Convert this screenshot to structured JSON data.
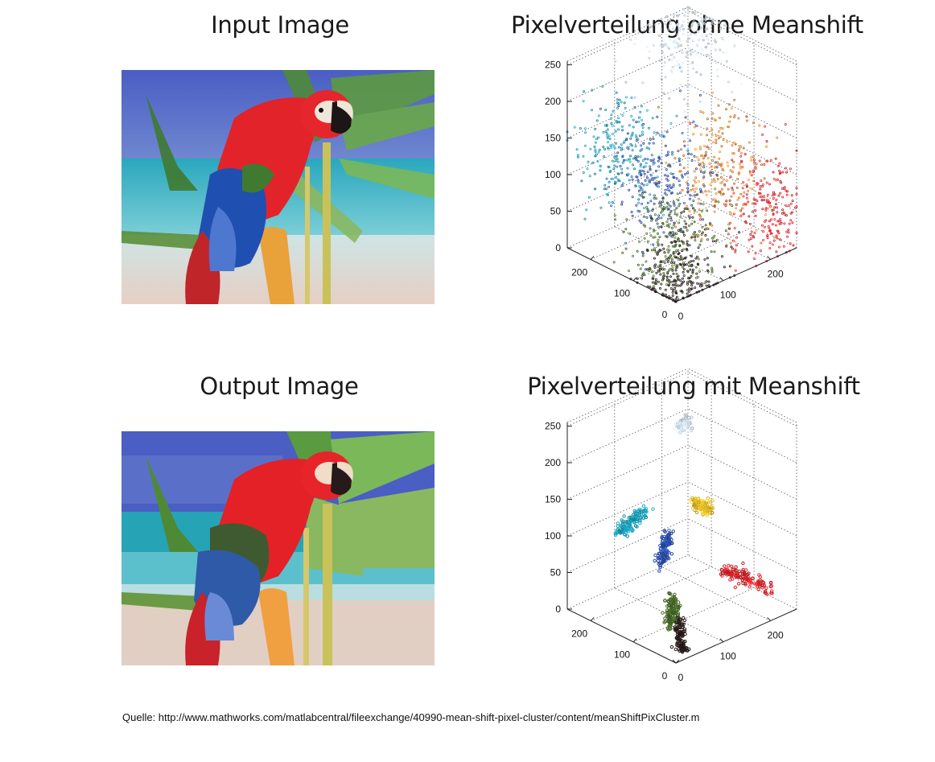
{
  "panels": {
    "input_title": "Input Image",
    "output_title": "Output Image",
    "plot_top_title": "Pixelverteilung ohne Meanshift",
    "plot_bottom_title": "Pixelverteilung mit Meanshift"
  },
  "footer": {
    "source": "Quelle: http://www.mathworks.com/matlabcentral/fileexchange/40990-mean-shift-pixel-cluster/content/meanShiftPixCluster.m"
  },
  "chart_data": [
    {
      "type": "scatter",
      "dimensions": 3,
      "title": "Pixelverteilung ohne Meanshift",
      "axes": {
        "x": {
          "range": [
            0,
            255
          ],
          "ticks": [
            0,
            100,
            200
          ]
        },
        "y": {
          "range": [
            0,
            255
          ],
          "ticks": [
            0,
            100,
            200
          ]
        },
        "z": {
          "range": [
            0,
            255
          ],
          "ticks": [
            0,
            50,
            100,
            150,
            200,
            250
          ]
        }
      },
      "grid": true,
      "clusters": [
        {
          "color": "#e0242a",
          "center": [
            225,
            30,
            60
          ]
        },
        {
          "color": "#1aa3c0",
          "center": [
            30,
            170,
            150
          ]
        },
        {
          "color": "#2a4fb0",
          "center": [
            40,
            80,
            130
          ]
        },
        {
          "color": "#4a6f2a",
          "center": [
            60,
            80,
            40
          ]
        },
        {
          "color": "#e88a2a",
          "center": [
            200,
            120,
            90
          ]
        },
        {
          "color": "#d8e4f0",
          "center": [
            210,
            210,
            235
          ]
        },
        {
          "color": "#2a1a1a",
          "center": [
            40,
            30,
            20
          ]
        }
      ]
    },
    {
      "type": "scatter",
      "dimensions": 3,
      "title": "Pixelverteilung mit Meanshift",
      "axes": {
        "x": {
          "range": [
            0,
            255
          ],
          "ticks": [
            0,
            100,
            200
          ]
        },
        "y": {
          "range": [
            0,
            255
          ],
          "ticks": [
            0,
            100,
            200
          ]
        },
        "z": {
          "range": [
            0,
            255
          ],
          "ticks": [
            0,
            50,
            100,
            150,
            200,
            250
          ]
        }
      },
      "grid": true,
      "clusters": [
        {
          "color": "#e0242a",
          "center": [
            225,
            30,
            60
          ]
        },
        {
          "color": "#1aa3c0",
          "center": [
            30,
            170,
            150
          ]
        },
        {
          "color": "#2a4fb0",
          "center": [
            40,
            80,
            130
          ]
        },
        {
          "color": "#4a6f2a",
          "center": [
            60,
            80,
            40
          ]
        },
        {
          "color": "#e8c02a",
          "center": [
            200,
            140,
            140
          ]
        },
        {
          "color": "#d8e4f0",
          "center": [
            210,
            210,
            235
          ]
        },
        {
          "color": "#2a1a1a",
          "center": [
            40,
            30,
            20
          ]
        }
      ]
    }
  ]
}
